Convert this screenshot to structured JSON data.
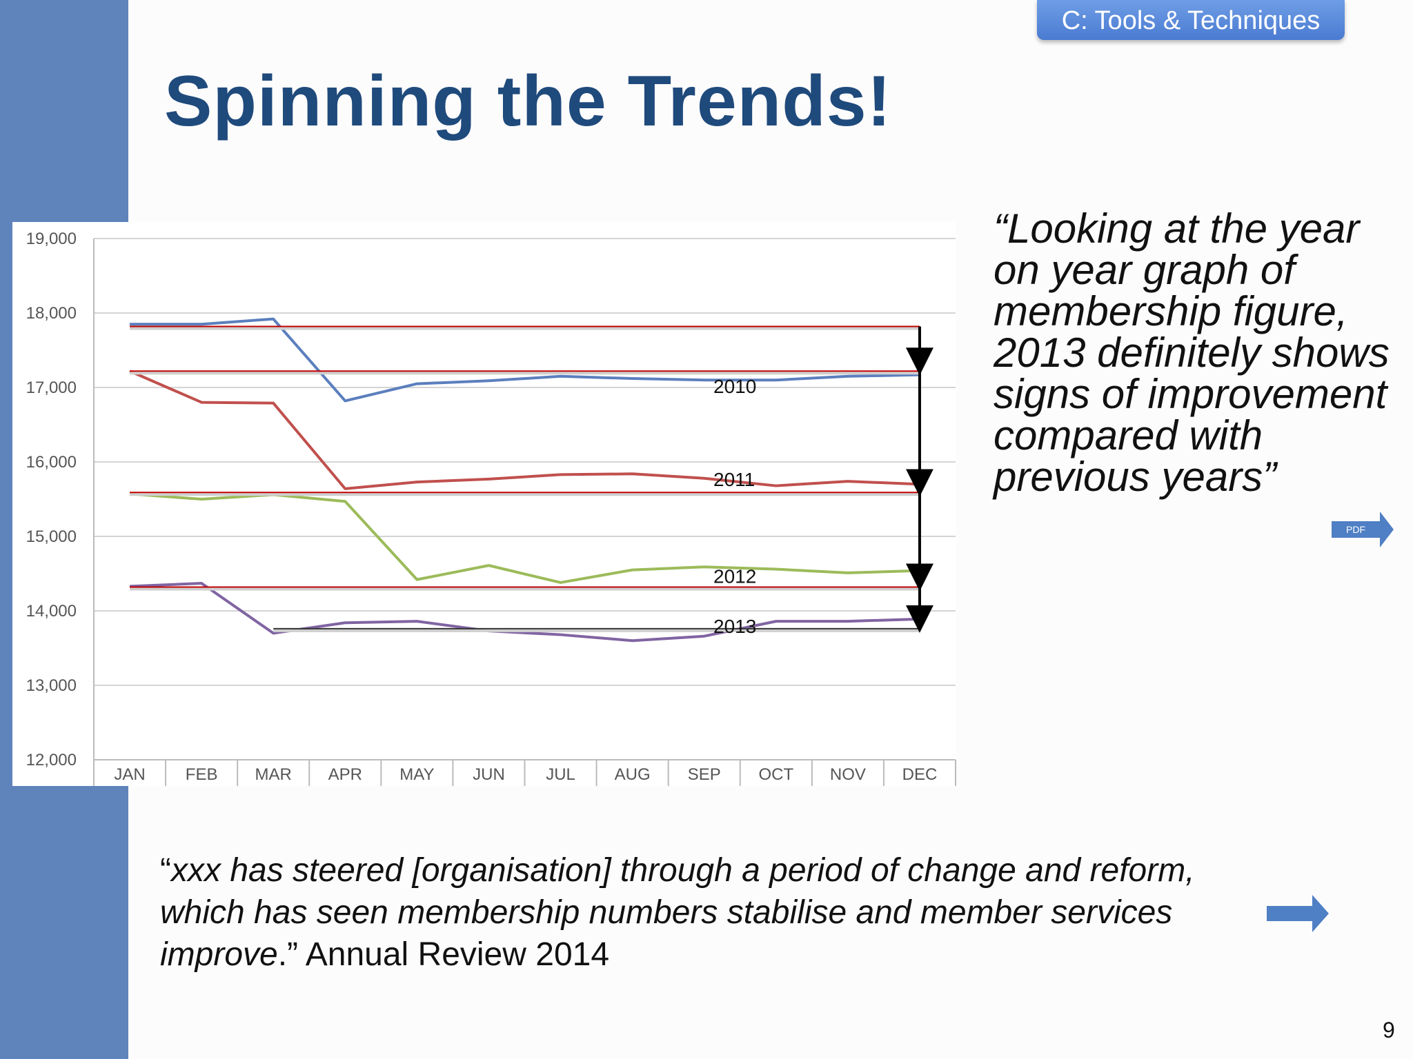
{
  "slide": {
    "section_tag": "C: Tools & Techniques",
    "title": "Spinning the Trends!",
    "quote": "“Looking at the year on year graph of membership figure, 2013 definitely shows signs of improvement compared with previous years”",
    "pdf_label": "PDF",
    "bottom_quote": {
      "open_mark": "“",
      "italic": "xxx has steered [organisation] through a period of change and reform, which has seen membership numbers stabilise and member services improve",
      "close": ".” Annual Review 2014"
    },
    "page_number": "9"
  },
  "colors": {
    "sidebar": "#5f84bb",
    "title": "#1f4a7c",
    "tag": "#5b8de0",
    "arrow": "#4f7fc4"
  },
  "chart_data": {
    "type": "line",
    "categories": [
      "JAN",
      "FEB",
      "MAR",
      "APR",
      "MAY",
      "JUN",
      "JUL",
      "AUG",
      "SEP",
      "OCT",
      "NOV",
      "DEC"
    ],
    "ylim": [
      12000,
      19000
    ],
    "yticks": [
      19000,
      18000,
      17000,
      16000,
      15000,
      14000,
      13000,
      12000
    ],
    "ytick_labels": [
      "19,000",
      "18,000",
      "17,000",
      "16,000",
      "15,000",
      "14,000",
      "13,000",
      "12,000"
    ],
    "grid": true,
    "series": [
      {
        "name": "2010",
        "color": "#5b7fbe",
        "values": [
          17850,
          17850,
          17920,
          16820,
          17050,
          17090,
          17150,
          17120,
          17100,
          17100,
          17150,
          17170
        ]
      },
      {
        "name": "2011",
        "color": "#c0504d",
        "values": [
          17220,
          16800,
          16790,
          15640,
          15730,
          15770,
          15830,
          15840,
          15780,
          15680,
          15740,
          15700
        ]
      },
      {
        "name": "2012",
        "color": "#9bbb59",
        "values": [
          15570,
          15500,
          15560,
          15470,
          14420,
          14610,
          14380,
          14550,
          14590,
          14560,
          14510,
          14540
        ]
      },
      {
        "name": "2013",
        "color": "#8064a2",
        "values": [
          14330,
          14370,
          13700,
          13840,
          13860,
          13730,
          13680,
          13600,
          13660,
          13860,
          13860,
          13890
        ]
      }
    ],
    "reference_lines": [
      {
        "label": "2010",
        "value": 17820,
        "color": "#c00000"
      },
      {
        "label": "2011",
        "value": 17220,
        "color": "#c00000"
      },
      {
        "label": "2012",
        "value": 15590,
        "color": "#c00000"
      },
      {
        "label": "2013",
        "value": 14320,
        "color": "#c00000"
      },
      {
        "label": "",
        "value": 13760,
        "color": "#333333"
      }
    ],
    "annotations": [
      {
        "label": "2010",
        "value": 17000
      },
      {
        "label": "2011",
        "value": 15750
      },
      {
        "label": "2012",
        "value": 14450
      },
      {
        "label": "2013",
        "value": 13780
      }
    ]
  }
}
